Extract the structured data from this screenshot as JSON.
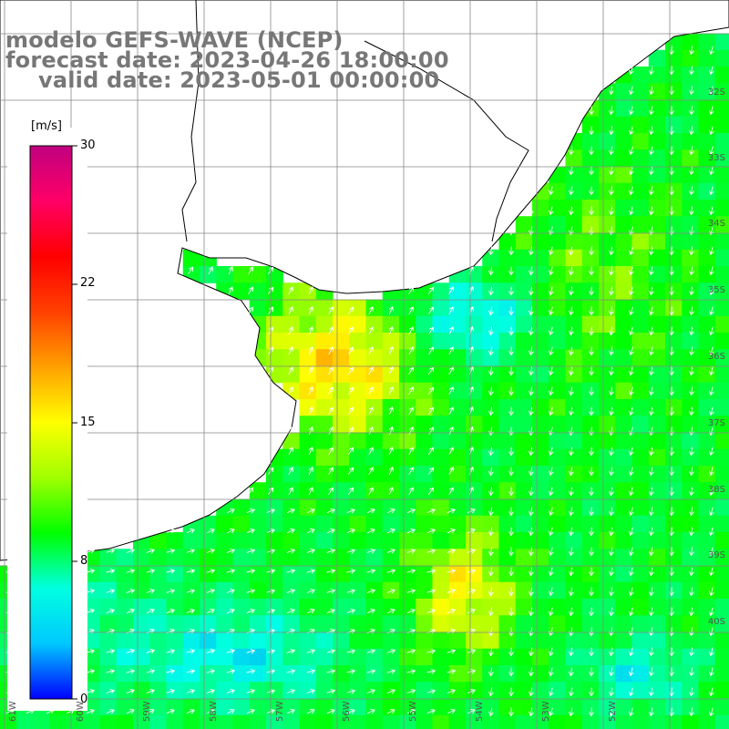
{
  "titles": {
    "line1": "modelo GEFS-WAVE (NCEP)",
    "line2": "forecast date: 2023-04-26 18:00:00",
    "line3": "valid date: 2023-05-01 00:00:00"
  },
  "colorbar": {
    "unit": "[m/s]",
    "ticks": [
      "30",
      "22",
      "15",
      "8",
      "0"
    ],
    "tick_values": [
      30,
      22,
      15,
      8,
      0
    ],
    "colors": [
      "#0000ff",
      "#00c8ff",
      "#00ffe0",
      "#00ff00",
      "#a0ff00",
      "#ffff00",
      "#ffa000",
      "#ff4000",
      "#ff0000",
      "#ff0066",
      "#c00080"
    ]
  },
  "map": {
    "lat_labels": [
      "32S",
      "33S",
      "34S",
      "35S",
      "36S",
      "37S",
      "38S",
      "39S",
      "40S"
    ],
    "lon_labels": [
      "61W",
      "60W",
      "59W",
      "58W",
      "57W",
      "56W",
      "55W",
      "54W",
      "53W",
      "52W"
    ],
    "land_color": "#ffffff",
    "grid_color": "#888888"
  },
  "chart_data": {
    "type": "heatmap",
    "variable": "wind speed",
    "unit": "m/s",
    "color_range": [
      0,
      30
    ]
  }
}
